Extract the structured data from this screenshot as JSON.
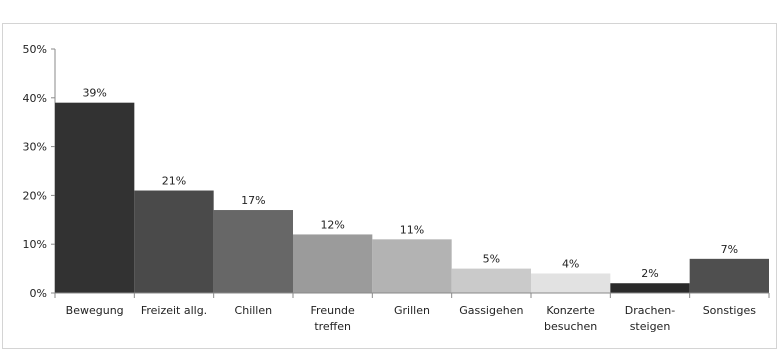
{
  "page_title": "",
  "chart_data": {
    "type": "bar",
    "categories": [
      [
        "Bewegung"
      ],
      [
        "Freizeit allg."
      ],
      [
        "Chillen"
      ],
      [
        "Freunde",
        "treffen"
      ],
      [
        "Grillen"
      ],
      [
        "Gassigehen"
      ],
      [
        "Konzerte",
        "besuchen"
      ],
      [
        "Drachen-",
        "steigen"
      ],
      [
        "Sonstiges"
      ]
    ],
    "values": [
      39,
      21,
      17,
      12,
      11,
      5,
      4,
      2,
      7
    ],
    "data_labels": [
      "39%",
      "21%",
      "17%",
      "12%",
      "11%",
      "5%",
      "4%",
      "2%",
      "7%"
    ],
    "colors": [
      "#323232",
      "#4a4a4a",
      "#676767",
      "#9b9b9b",
      "#b3b3b3",
      "#cacaca",
      "#e2e2e2",
      "#2a2a2a",
      "#4f4f4f"
    ],
    "ylim": [
      0,
      50
    ],
    "yticks": [
      0,
      10,
      20,
      30,
      40,
      50
    ],
    "ytick_labels": [
      "0%",
      "10%",
      "20%",
      "30%",
      "40%",
      "50%"
    ],
    "grid": false,
    "title": "",
    "xlabel": "",
    "ylabel": ""
  }
}
